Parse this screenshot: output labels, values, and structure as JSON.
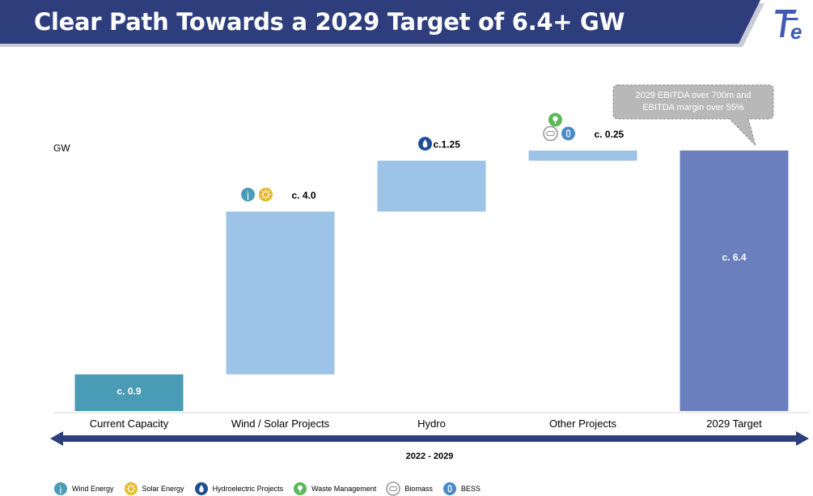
{
  "header": {
    "title": "Clear Path Towards a 2029 Target of 6.4+ GW",
    "banner_color": "#2e3d7c",
    "logo_letter": "e",
    "logo_color": "#3f5bb5"
  },
  "callout": {
    "line1": "2029 EBITDA over 700m and",
    "line2": "EBITDA margin over 55%"
  },
  "period_label": "2022 - 2029",
  "chart_data": {
    "type": "bar",
    "subtype": "waterfall",
    "ylabel": "GW",
    "ylim": [
      0,
      6.4
    ],
    "categories": [
      "Current Capacity",
      "Wind / Solar Projects",
      "Hydro",
      "Other Projects",
      "2029 Target"
    ],
    "series": [
      {
        "values": [
          0.9,
          4.0,
          1.25,
          0.25,
          6.4
        ],
        "kinds": [
          "total",
          "increment",
          "increment",
          "increment",
          "total"
        ],
        "labels": [
          "c. 0.9",
          "c. 4.0",
          "c.1.25",
          "c. 0.25",
          "c. 6.4"
        ],
        "colors": [
          "#4a9bb5",
          "#9dc3e6",
          "#9dc3e6",
          "#9dc3e6",
          "#6b7fbe"
        ]
      }
    ],
    "grid": false,
    "legend_position": "bottom"
  },
  "legend": [
    {
      "label": "Wind Energy",
      "icon": "wind-icon",
      "color": "#4a9bb5"
    },
    {
      "label": "Solar Energy",
      "icon": "sun-icon",
      "color": "#e5b522"
    },
    {
      "label": "Hydroelectric Projects",
      "icon": "drop-icon",
      "color": "#1f4e96"
    },
    {
      "label": "Waste Management",
      "icon": "tree-icon",
      "color": "#5cb85c"
    },
    {
      "label": "Biomass",
      "icon": "biomass-icon",
      "color": "#9a9a9a"
    },
    {
      "label": "BESS",
      "icon": "battery-icon",
      "color": "#4b8ac7"
    }
  ]
}
